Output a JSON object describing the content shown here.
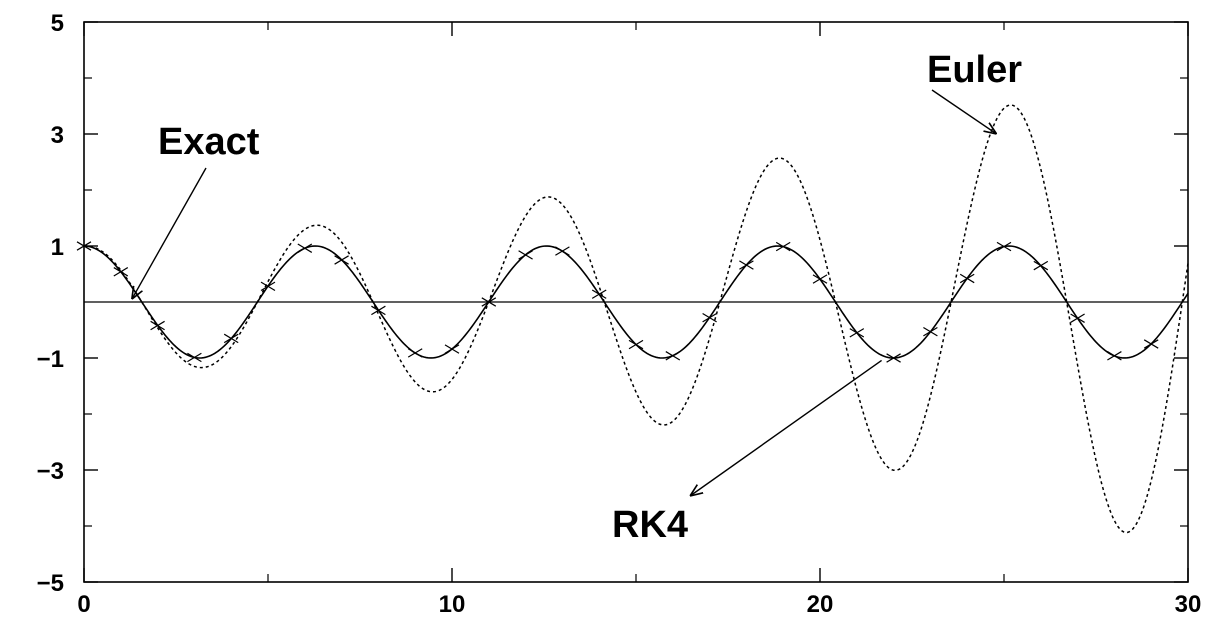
{
  "chart_data": {
    "type": "line",
    "xlim": [
      0,
      30
    ],
    "ylim": [
      -5,
      5
    ],
    "x_ticks": [
      0,
      10,
      20,
      30
    ],
    "x_tick_labels": [
      "0",
      "10",
      "20",
      "30"
    ],
    "y_ticks": [
      -5,
      -3,
      -1,
      1,
      3,
      5
    ],
    "y_tick_labels": [
      "−5",
      "−3",
      "−1",
      "1",
      "3",
      "5"
    ],
    "grid": false,
    "zero_line": true,
    "series": [
      {
        "name": "Exact",
        "style": "solid",
        "color": "#000000",
        "x": [
          0,
          0.5,
          1,
          1.5,
          2,
          2.5,
          3,
          3.5,
          4,
          4.5,
          5,
          5.5,
          6,
          6.5,
          7,
          7.5,
          8,
          8.5,
          9,
          9.5,
          10,
          10.5,
          11,
          11.5,
          12,
          12.5,
          13,
          13.5,
          14,
          14.5,
          15,
          15.5,
          16,
          16.5,
          17,
          17.5,
          18,
          18.5,
          19,
          19.5,
          20,
          20.5,
          21,
          21.5,
          22,
          22.5,
          23,
          23.5,
          24,
          24.5,
          25,
          25.5,
          26,
          26.5,
          27,
          27.5,
          28,
          28.5,
          29,
          29.5,
          30
        ],
        "y": [
          1.0,
          0.878,
          0.54,
          0.071,
          -0.416,
          -0.801,
          -0.99,
          -0.936,
          -0.654,
          -0.211,
          0.284,
          0.709,
          0.96,
          0.977,
          0.754,
          0.347,
          -0.146,
          -0.602,
          -0.911,
          -0.997,
          -0.839,
          -0.476,
          0.004,
          0.483,
          0.844,
          0.997,
          0.907,
          0.595,
          0.137,
          -0.355,
          -0.76,
          -0.979,
          -0.958,
          -0.7,
          -0.275,
          0.219,
          0.66,
          0.939,
          0.989,
          0.796,
          0.408,
          -0.08,
          -0.548,
          -0.881,
          -1.0,
          -0.874,
          -0.533,
          -0.063,
          0.424,
          0.806,
          0.991,
          0.933,
          0.647,
          0.203,
          -0.292,
          -0.715,
          -0.962,
          -0.976,
          -0.748,
          -0.339,
          0.154
        ]
      },
      {
        "name": "Euler",
        "style": "dotted",
        "color": "#000000",
        "amplitude_growth_rate": 0.05,
        "x": [
          0,
          0.5,
          1,
          1.5,
          2,
          2.5,
          3,
          3.5,
          4,
          4.5,
          5,
          5.5,
          6,
          6.5,
          7,
          7.5,
          8,
          8.5,
          9,
          9.5,
          10,
          10.5,
          11,
          11.5,
          12,
          12.5,
          13,
          13.5,
          14,
          14.5,
          15,
          15.5,
          16,
          16.5,
          17,
          17.5,
          18,
          18.5,
          19,
          19.5,
          20,
          20.5,
          21,
          21.5,
          22,
          22.5,
          23,
          23.5,
          24,
          24.5,
          25,
          25.5,
          26,
          26.5,
          27,
          27.5,
          28,
          28.5,
          29,
          29.5,
          30
        ],
        "y": [
          1.0,
          0.9,
          0.57,
          0.08,
          -0.46,
          -0.91,
          -1.15,
          -1.11,
          -0.8,
          -0.26,
          0.36,
          0.93,
          1.29,
          1.35,
          1.07,
          0.5,
          -0.22,
          -0.92,
          -1.42,
          -1.6,
          -1.38,
          -0.8,
          0.01,
          0.85,
          1.53,
          1.85,
          1.73,
          1.16,
          0.27,
          -0.73,
          -1.6,
          -2.12,
          -2.13,
          -1.59,
          -0.64,
          0.53,
          1.62,
          2.37,
          2.56,
          2.1,
          1.11,
          -0.22,
          -1.54,
          -2.5,
          -2.91,
          -2.6,
          -1.63,
          -0.2,
          1.35,
          2.61,
          3.28,
          3.16,
          2.24,
          0.72,
          -1.06,
          -2.66,
          -3.64,
          -3.79,
          -2.96,
          -1.37,
          0.64
        ]
      },
      {
        "name": "RK4",
        "style": "markers",
        "marker": "x",
        "color": "#000000",
        "x": [
          0,
          1,
          2,
          3,
          4,
          5,
          6,
          7,
          8,
          9,
          10,
          11,
          12,
          13,
          14,
          15,
          16,
          17,
          18,
          19,
          20,
          21,
          22,
          23,
          24,
          25,
          26,
          27,
          28,
          29
        ],
        "y": [
          1.0,
          0.54,
          -0.42,
          -0.99,
          -0.65,
          0.28,
          0.96,
          0.75,
          -0.15,
          -0.91,
          -0.84,
          0.0,
          0.84,
          0.91,
          0.14,
          -0.76,
          -0.96,
          -0.28,
          0.66,
          0.99,
          0.41,
          -0.55,
          -1.0,
          -0.53,
          0.42,
          0.99,
          0.65,
          -0.29,
          -0.96,
          -0.75
        ]
      }
    ],
    "annotations": [
      {
        "text": "Exact",
        "target_series": "Exact",
        "target": [
          1.3,
          0.05
        ]
      },
      {
        "text": "Euler",
        "target_series": "Euler",
        "target": [
          24.8,
          3.0
        ]
      },
      {
        "text": "RK4",
        "target_series": "RK4",
        "target": [
          22.0,
          -0.9
        ]
      }
    ]
  }
}
